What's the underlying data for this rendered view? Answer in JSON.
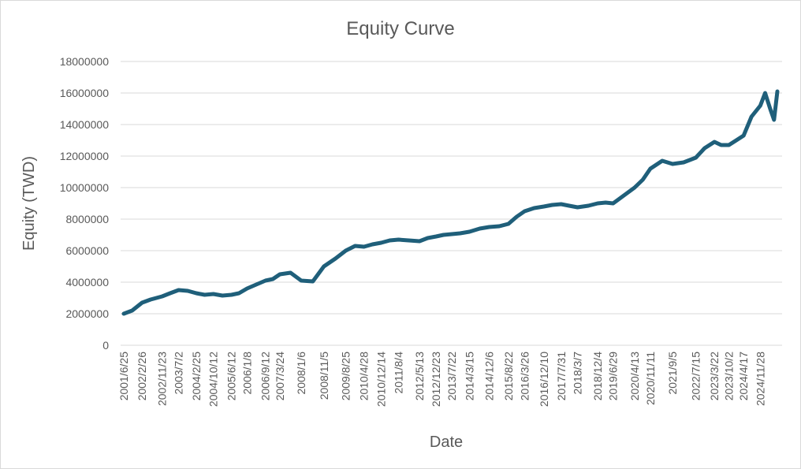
{
  "chart_data": {
    "type": "line",
    "title": "Equity Curve",
    "xlabel": "Date",
    "ylabel": "Equity (TWD)",
    "ylim": [
      0,
      18000000
    ],
    "yticks": [
      "0",
      "2000000",
      "4000000",
      "6000000",
      "8000000",
      "10000000",
      "12000000",
      "14000000",
      "16000000",
      "18000000"
    ],
    "xticks": [
      "2001/6/25",
      "2002/2/26",
      "2002/11/23",
      "2003/7/2",
      "2004/2/25",
      "2004/10/12",
      "2005/6/12",
      "2006/1/8",
      "2006/9/12",
      "2007/3/24",
      "2008/1/6",
      "2008/11/5",
      "2009/8/25",
      "2010/4/28",
      "2010/12/14",
      "2011/8/4",
      "2012/5/13",
      "2012/12/23",
      "2013/7/22",
      "2014/3/15",
      "2014/12/6",
      "2015/8/22",
      "2016/3/26",
      "2016/12/10",
      "2017/7/31",
      "2018/3/7",
      "2018/12/4",
      "2019/6/29",
      "2020/4/13",
      "2020/11/11",
      "2021/9/5",
      "2022/7/15",
      "2023/3/22",
      "2023/10/2",
      "2024/4/17",
      "2024/11/28"
    ],
    "grid": true,
    "line_color": "#1f5f7a",
    "series": [
      {
        "x": [
          "2001/6/25",
          "2001/10/15",
          "2002/2/26",
          "2002/6/20",
          "2002/11/23",
          "2003/3/10",
          "2003/7/2",
          "2003/11/1",
          "2004/2/25",
          "2004/6/15",
          "2004/10/12",
          "2005/2/10",
          "2005/6/12",
          "2005/9/20",
          "2006/1/8",
          "2006/5/10",
          "2006/9/12",
          "2006/12/20",
          "2007/3/24",
          "2007/8/15",
          "2008/1/6",
          "2008/6/10",
          "2008/11/5",
          "2009/4/10",
          "2009/8/25",
          "2009/12/30",
          "2010/4/28",
          "2010/8/20",
          "2010/12/14",
          "2011/4/10",
          "2011/8/4",
          "2011/12/20",
          "2012/5/13",
          "2012/9/1",
          "2012/12/23",
          "2013/4/1",
          "2013/7/22",
          "2013/11/10",
          "2014/3/15",
          "2014/8/1",
          "2014/12/6",
          "2015/4/20",
          "2015/8/22",
          "2015/12/10",
          "2016/3/26",
          "2016/8/1",
          "2016/12/10",
          "2017/4/1",
          "2017/7/31",
          "2017/11/15",
          "2018/3/7",
          "2018/8/1",
          "2018/12/4",
          "2019/3/20",
          "2019/6/29",
          "2019/11/20",
          "2020/4/13",
          "2020/8/1",
          "2020/11/11",
          "2021/4/20",
          "2021/9/5",
          "2022/2/1",
          "2022/7/15",
          "2022/11/10",
          "2023/3/22",
          "2023/6/20",
          "2023/10/2",
          "2024/1/10",
          "2024/4/17",
          "2024/8/1",
          "2024/11/28",
          "2025/2/1",
          "2025/4/10",
          "2025/6/1",
          "2025/7/15"
        ],
        "values": [
          2000000,
          2200000,
          2700000,
          2900000,
          3100000,
          3300000,
          3500000,
          3450000,
          3300000,
          3200000,
          3250000,
          3150000,
          3200000,
          3300000,
          3600000,
          3850000,
          4100000,
          4200000,
          4500000,
          4600000,
          4100000,
          4050000,
          5000000,
          5500000,
          6000000,
          6300000,
          6250000,
          6400000,
          6500000,
          6650000,
          6700000,
          6650000,
          6600000,
          6800000,
          6900000,
          7000000,
          7050000,
          7100000,
          7200000,
          7400000,
          7500000,
          7550000,
          7700000,
          8150000,
          8500000,
          8700000,
          8800000,
          8900000,
          8950000,
          8850000,
          8750000,
          8850000,
          9000000,
          9050000,
          9000000,
          9500000,
          10000000,
          10500000,
          11200000,
          11700000,
          11500000,
          11600000,
          11900000,
          12500000,
          12900000,
          12700000,
          12700000,
          13000000,
          13300000,
          14500000,
          15200000,
          16000000,
          15000000,
          14300000,
          16100000
        ]
      }
    ]
  }
}
